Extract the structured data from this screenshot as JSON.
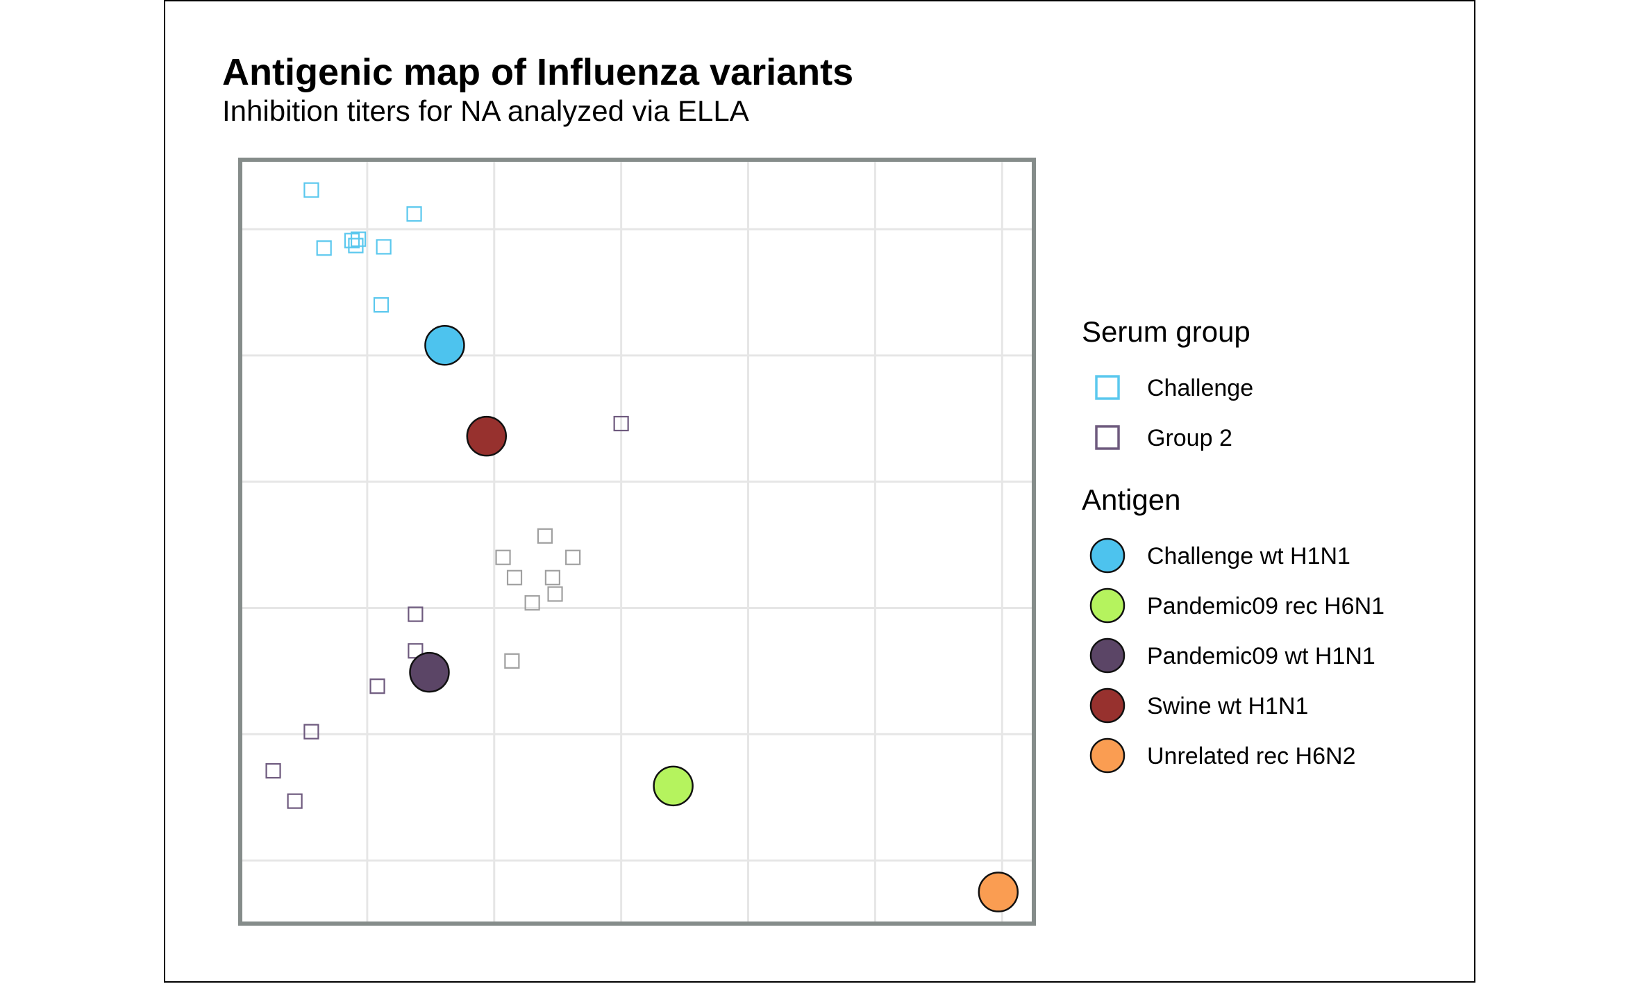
{
  "chart_data": {
    "type": "scatter",
    "title": "Antigenic map of Influenza variants",
    "subtitle": "Inhibition titers for NA analyzed via ELLA",
    "xlabel": "",
    "ylabel": "",
    "xlim": [
      0,
      6.25
    ],
    "ylim": [
      0,
      6.05
    ],
    "grid": true,
    "axis_ticks_labels": false,
    "legend_placement": "right",
    "legends": [
      {
        "title": "Serum group",
        "entries": [
          {
            "label": "Challenge",
            "shape": "open-square",
            "color": "#5BC8EE"
          },
          {
            "label": "Group 2",
            "shape": "open-square",
            "color": "#6E5A7E"
          }
        ]
      },
      {
        "title": "Antigen",
        "entries": [
          {
            "label": "Challenge wt H1N1",
            "shape": "filled-circle",
            "color": "#4DC3EE"
          },
          {
            "label": "Pandemic09 rec H6N1",
            "shape": "filled-circle",
            "color": "#B5F35E"
          },
          {
            "label": "Pandemic09 wt H1N1",
            "shape": "filled-circle",
            "color": "#5B4566"
          },
          {
            "label": "Swine wt H1N1",
            "shape": "filled-circle",
            "color": "#97312E"
          },
          {
            "label": "Unrelated rec H6N2",
            "shape": "filled-circle",
            "color": "#FA9D52"
          }
        ]
      }
    ],
    "antigens": [
      {
        "name": "Challenge wt H1N1",
        "x": 1.61,
        "y": 4.58,
        "color": "#4DC3EE"
      },
      {
        "name": "Swine wt H1N1",
        "x": 1.94,
        "y": 3.86,
        "color": "#97312E"
      },
      {
        "name": "Pandemic09 wt H1N1",
        "x": 1.49,
        "y": 1.99,
        "color": "#5B4566"
      },
      {
        "name": "Pandemic09 rec H6N1",
        "x": 3.41,
        "y": 1.09,
        "color": "#B5F35E"
      },
      {
        "name": "Unrelated rec H6N2",
        "x": 5.97,
        "y": 0.25,
        "color": "#FA9D52"
      }
    ],
    "sera": [
      {
        "group": "Challenge",
        "color": "#5BC8EE",
        "points": [
          [
            0.56,
            5.81
          ],
          [
            1.37,
            5.62
          ],
          [
            0.66,
            5.35
          ],
          [
            0.88,
            5.41
          ],
          [
            0.93,
            5.42
          ],
          [
            0.91,
            5.37
          ],
          [
            1.13,
            5.36
          ],
          [
            1.11,
            4.9
          ]
        ]
      },
      {
        "group": "Group 2",
        "color": "#6E5A7E",
        "points": [
          [
            3.0,
            3.96
          ],
          [
            1.38,
            2.45
          ],
          [
            1.38,
            2.16
          ],
          [
            1.57,
            2.01
          ],
          [
            1.08,
            1.88
          ],
          [
            0.56,
            1.52
          ],
          [
            0.26,
            1.21
          ],
          [
            0.43,
            0.97
          ]
        ]
      },
      {
        "group": "",
        "color": "#A0A0A0",
        "points": [
          [
            2.4,
            3.07
          ],
          [
            2.07,
            2.9
          ],
          [
            2.62,
            2.9
          ],
          [
            2.16,
            2.74
          ],
          [
            2.46,
            2.74
          ],
          [
            2.48,
            2.61
          ],
          [
            2.3,
            2.54
          ],
          [
            2.14,
            2.08
          ]
        ]
      }
    ]
  }
}
